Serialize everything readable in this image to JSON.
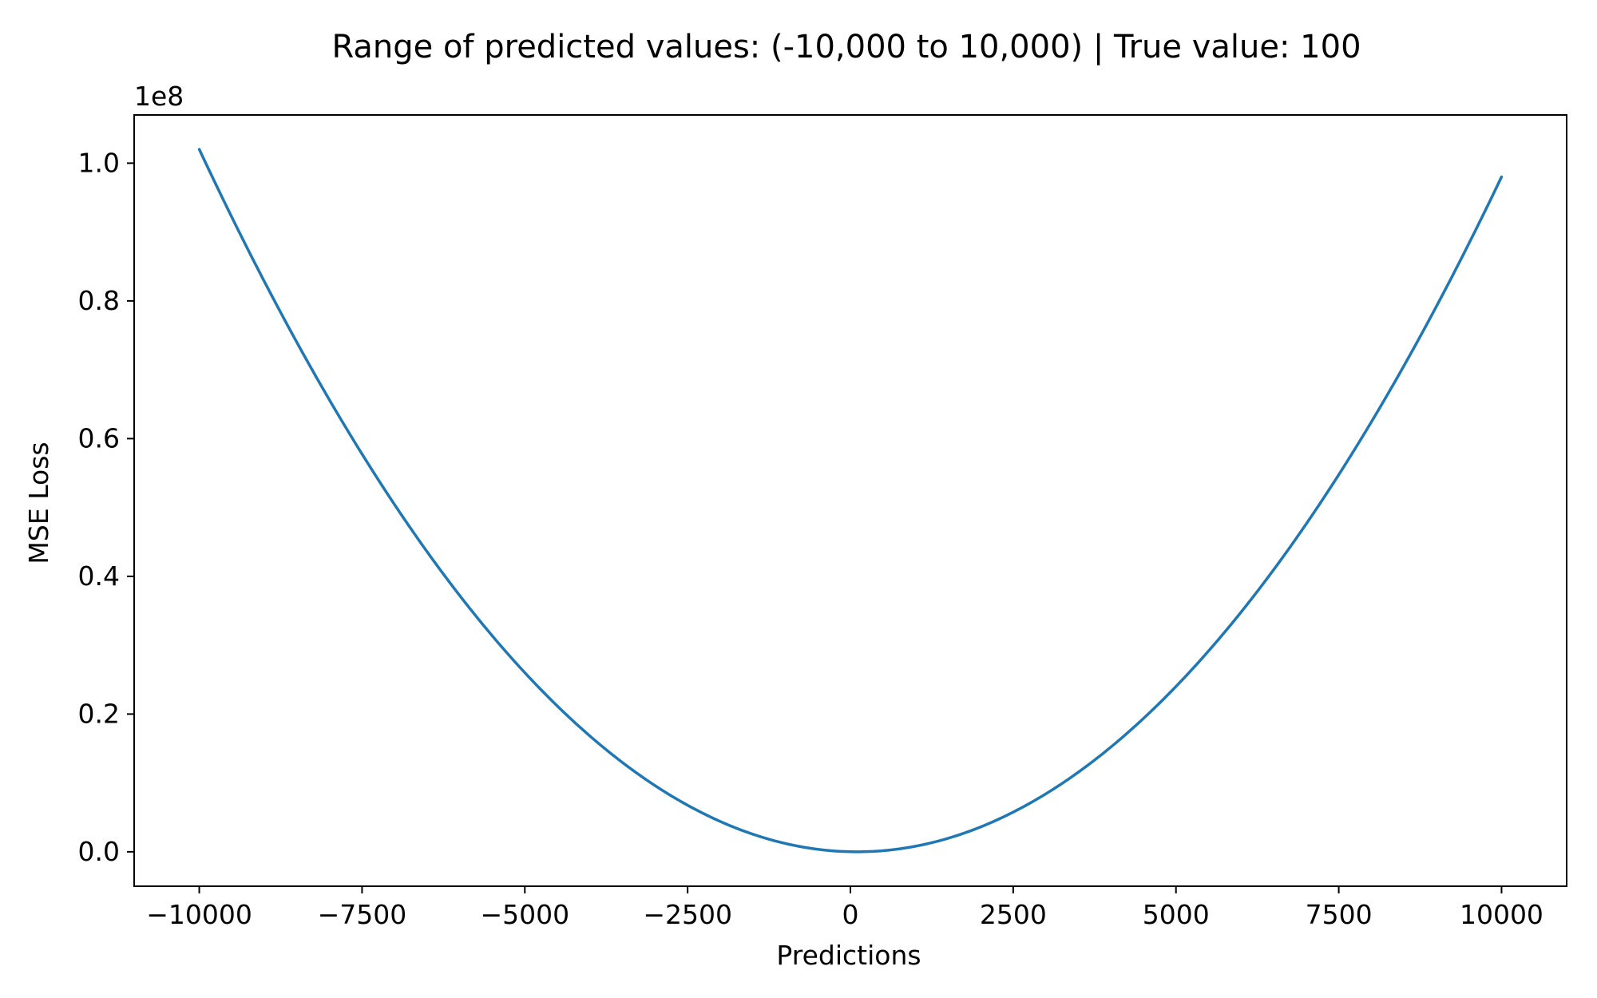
{
  "chart_data": {
    "type": "line",
    "title": "Range of predicted values: (-10,000 to 10,000) | True value: 100",
    "xlabel": "Predictions",
    "ylabel": "MSE Loss",
    "y_offset_label": "1e8",
    "y_scale": 100000000,
    "xlim": [
      -11000,
      11000
    ],
    "ylim": [
      -0.05,
      1.07
    ],
    "x_ticks": [
      -10000,
      -7500,
      -5000,
      -2500,
      0,
      2500,
      5000,
      7500,
      10000
    ],
    "x_tick_labels": [
      "−10000",
      "−7500",
      "−5000",
      "−2500",
      "0",
      "2500",
      "5000",
      "7500",
      "10000"
    ],
    "y_ticks": [
      0.0,
      0.2,
      0.4,
      0.6,
      0.8,
      1.0
    ],
    "y_tick_labels": [
      "0.0",
      "0.2",
      "0.4",
      "0.6",
      "0.8",
      "1.0"
    ],
    "grid": false,
    "series": [
      {
        "color": "#1f77b4",
        "function": "(x - 100)^2",
        "x_range": [
          -10000,
          10000
        ],
        "x": [
          -10000,
          -7500,
          -5000,
          -2500,
          0,
          100,
          2500,
          5000,
          7500,
          10000
        ],
        "y": [
          102010000,
          57760000,
          26010000,
          6760000,
          10000,
          0,
          5760000,
          24010000,
          55960000,
          98010000
        ]
      }
    ]
  }
}
